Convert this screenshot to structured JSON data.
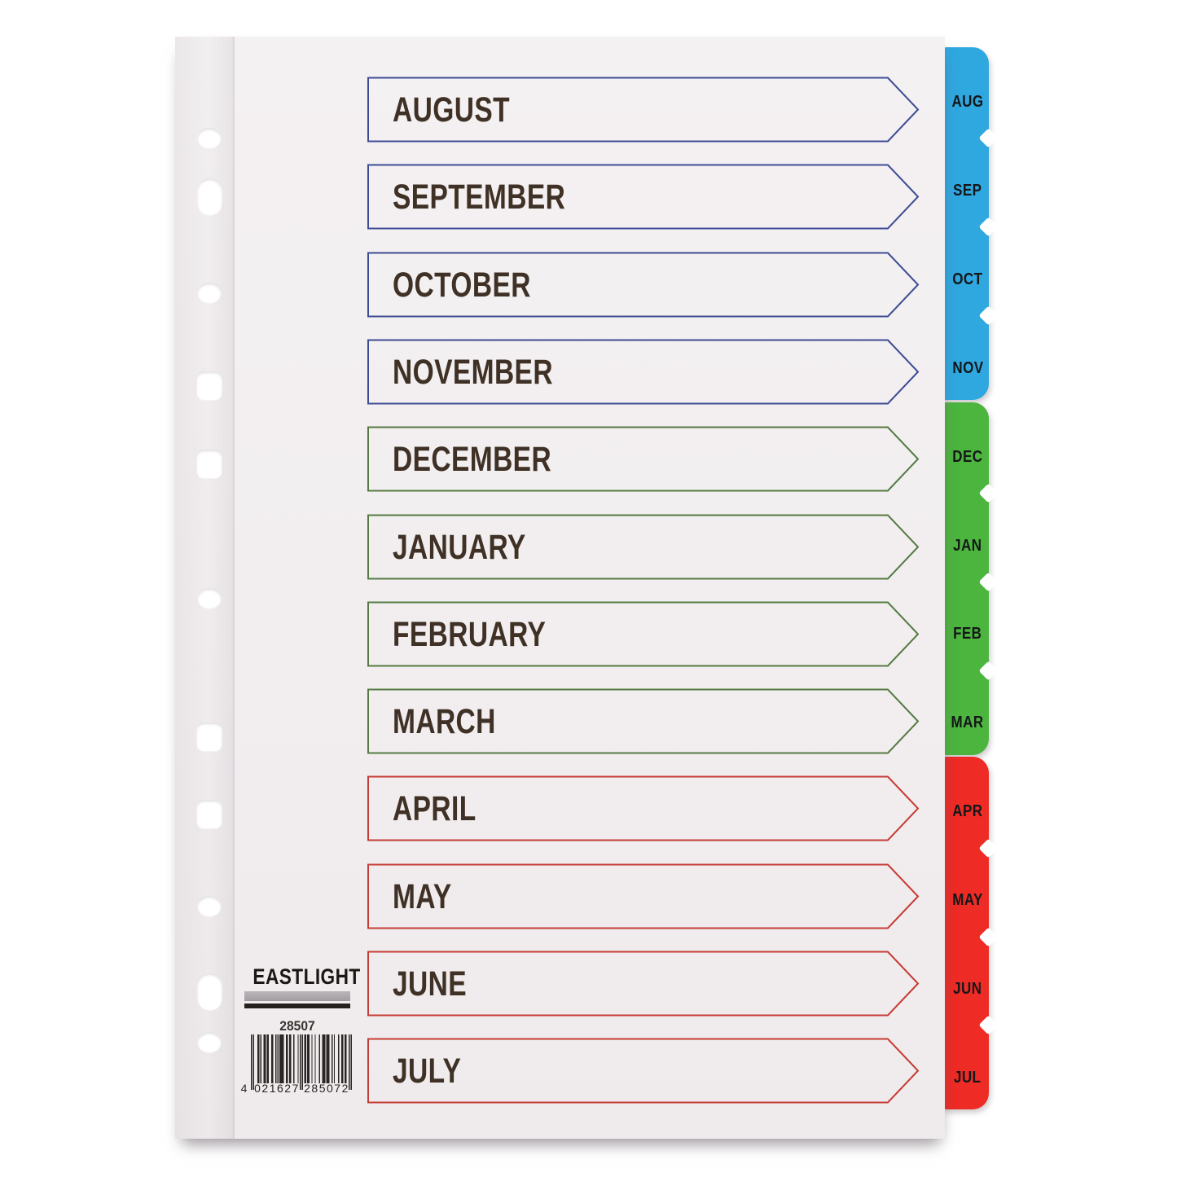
{
  "product": {
    "brand": "EASTLIGHT",
    "code": "28507",
    "barcode": {
      "value": "4021627285072",
      "lead": "4",
      "left_group": "021627",
      "right_group": "285072"
    }
  },
  "months": [
    {
      "name": "AUGUST",
      "tab": "AUG",
      "group": "blue"
    },
    {
      "name": "SEPTEMBER",
      "tab": "SEP",
      "group": "blue"
    },
    {
      "name": "OCTOBER",
      "tab": "OCT",
      "group": "blue"
    },
    {
      "name": "NOVEMBER",
      "tab": "NOV",
      "group": "blue"
    },
    {
      "name": "DECEMBER",
      "tab": "DEC",
      "group": "green"
    },
    {
      "name": "JANUARY",
      "tab": "JAN",
      "group": "green"
    },
    {
      "name": "FEBRUARY",
      "tab": "FEB",
      "group": "green"
    },
    {
      "name": "MARCH",
      "tab": "MAR",
      "group": "green"
    },
    {
      "name": "APRIL",
      "tab": "APR",
      "group": "red"
    },
    {
      "name": "MAY",
      "tab": "MAY",
      "group": "red"
    },
    {
      "name": "JUNE",
      "tab": "JUN",
      "group": "red"
    },
    {
      "name": "JULY",
      "tab": "JUL",
      "group": "red"
    }
  ],
  "colors": {
    "tab_blue": "#2fa8e0",
    "tab_green": "#4cb53e",
    "tab_red": "#ee2b25",
    "border_blue": "#3e4c94",
    "border_green": "#557b42",
    "border_red": "#c53c34",
    "month_text": "#3f3125",
    "tab_text": "#15171a"
  }
}
